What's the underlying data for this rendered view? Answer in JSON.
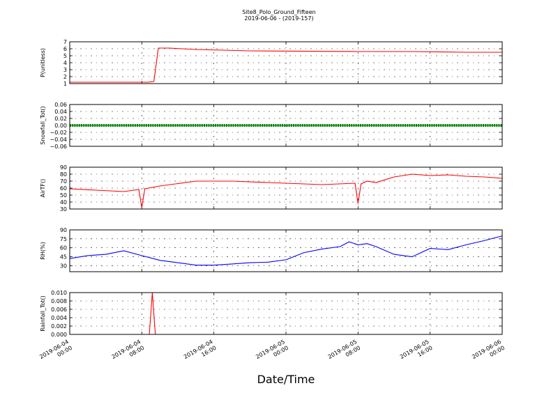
{
  "figure": {
    "title": "Site8_Polo_Ground_Fifteen",
    "subtitle": "2019-06-06 - (2019-157)",
    "xlabel": "Date/Time"
  },
  "chart_data": [
    {
      "type": "line",
      "ylabel": "P(unitless)",
      "ylim": [
        1,
        7
      ],
      "yticks": [
        "1",
        "2",
        "3",
        "4",
        "5",
        "6",
        "7"
      ],
      "color": "#ff0000",
      "grid": true,
      "x": [
        "2019-06-04 00:00",
        "2019-06-04 06:00",
        "2019-06-04 07:59",
        "2019-06-04 08:40",
        "2019-06-04 09:20",
        "2019-06-04 09:50",
        "2019-06-04 11:00",
        "2019-06-04 14:00",
        "2019-06-04 20:00",
        "2019-06-05 08:00",
        "2019-06-05 14:00",
        "2019-06-05 20:00",
        "2019-06-06 00:00"
      ],
      "values": [
        1.2,
        1.2,
        1.2,
        1.2,
        1.3,
        6.1,
        6.1,
        5.9,
        5.7,
        5.6,
        5.6,
        5.5,
        5.5
      ]
    },
    {
      "type": "line",
      "ylabel": "Snowfall_Tot()",
      "ylim": [
        -0.06,
        0.06
      ],
      "yticks": [
        "−0.06",
        "−0.04",
        "−0.02",
        "0.00",
        "0.02",
        "0.04",
        "0.06"
      ],
      "color": "#008000",
      "grid": true,
      "markers": true,
      "x": [
        "2019-06-04 00:00",
        "2019-06-06 00:00"
      ],
      "values": [
        0.0,
        0.0
      ]
    },
    {
      "type": "line",
      "ylabel": "AirTF()",
      "ylim": [
        30,
        90
      ],
      "yticks": [
        "30",
        "40",
        "50",
        "60",
        "70",
        "80",
        "90"
      ],
      "color": "#ff0000",
      "grid": true,
      "x": [
        "2019-06-04 00:00",
        "2019-06-04 03:00",
        "2019-06-04 06:00",
        "2019-06-04 07:40",
        "2019-06-04 08:00",
        "2019-06-04 08:20",
        "2019-06-04 10:00",
        "2019-06-04 14:00",
        "2019-06-04 18:00",
        "2019-06-05 00:00",
        "2019-06-05 04:00",
        "2019-06-05 07:40",
        "2019-06-05 08:00",
        "2019-06-05 08:20",
        "2019-06-05 09:00",
        "2019-06-05 10:00",
        "2019-06-05 12:00",
        "2019-06-05 14:00",
        "2019-06-05 16:00",
        "2019-06-05 18:00",
        "2019-06-05 20:00",
        "2019-06-05 22:00",
        "2019-06-06 00:00"
      ],
      "values": [
        59,
        57,
        55,
        58,
        32,
        59,
        63,
        70,
        70,
        67,
        65,
        67,
        38,
        66,
        70,
        68,
        76,
        80,
        78,
        79,
        77,
        76,
        74
      ]
    },
    {
      "type": "line",
      "ylabel": "RH(%)",
      "ylim": [
        20,
        90
      ],
      "yticks": [
        "30",
        "45",
        "60",
        "75",
        "90"
      ],
      "color": "#0000ff",
      "grid": true,
      "x": [
        "2019-06-04 00:00",
        "2019-06-04 02:00",
        "2019-06-04 04:00",
        "2019-06-04 06:00",
        "2019-06-04 08:00",
        "2019-06-04 10:00",
        "2019-06-04 12:00",
        "2019-06-04 14:00",
        "2019-06-04 16:00",
        "2019-06-04 18:00",
        "2019-06-04 20:00",
        "2019-06-04 22:00",
        "2019-06-05 00:00",
        "2019-06-05 02:00",
        "2019-06-05 04:00",
        "2019-06-05 06:00",
        "2019-06-05 07:00",
        "2019-06-05 08:00",
        "2019-06-05 09:00",
        "2019-06-05 10:00",
        "2019-06-05 12:00",
        "2019-06-05 14:00",
        "2019-06-05 16:00",
        "2019-06-05 18:00",
        "2019-06-05 20:00",
        "2019-06-05 22:00",
        "2019-06-06 00:00"
      ],
      "values": [
        42,
        47,
        49,
        55,
        47,
        39,
        35,
        31,
        31,
        33,
        35,
        36,
        40,
        52,
        58,
        62,
        70,
        65,
        67,
        62,
        49,
        45,
        59,
        57,
        65,
        72,
        80
      ]
    },
    {
      "type": "line",
      "ylabel": "Rainfall_Tot()",
      "ylim": [
        0,
        0.01
      ],
      "yticks": [
        "0.000",
        "0.002",
        "0.004",
        "0.006",
        "0.008",
        "0.010"
      ],
      "color": "#ff0000",
      "grid": true,
      "xticks": [
        "2019-06-04\n00:00",
        "2019-06-04\n08:00",
        "2019-06-04\n16:00",
        "2019-06-05\n00:00",
        "2019-06-05\n08:00",
        "2019-06-05\n16:00",
        "2019-06-06\n00:00"
      ],
      "x": [
        "2019-06-04 00:00",
        "2019-06-04 08:50",
        "2019-06-04 09:10",
        "2019-06-04 09:30",
        "2019-06-06 00:00"
      ],
      "values": [
        0.0,
        0.0,
        0.01,
        0.0,
        0.0
      ]
    }
  ]
}
